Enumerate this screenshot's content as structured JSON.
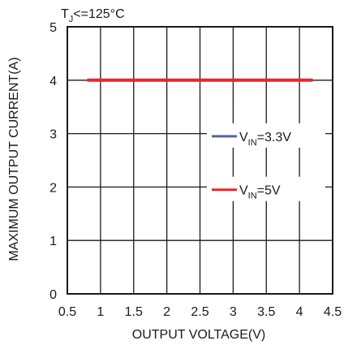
{
  "chart_data": {
    "type": "line",
    "xlabel": "OUTPUT VOLTAGE(V)",
    "ylabel": "MAXIMUM OUTPUT CURRENT(A)",
    "xlim": [
      0.5,
      4.5
    ],
    "ylim": [
      0,
      5
    ],
    "xticks": [
      "0.5",
      "1",
      "1.5",
      "2",
      "2.5",
      "3",
      "3.5",
      "4",
      "4.5"
    ],
    "yticks": [
      "0",
      "1",
      "2",
      "3",
      "4",
      "5"
    ],
    "grid": true,
    "annotation": {
      "main": "T",
      "sub": "J",
      "rest": "<=125°C"
    },
    "legend_placement": "inside-right",
    "series": [
      {
        "label_main": "V",
        "label_sub": "IN",
        "label_rest": "=3.3V",
        "color": "#5b5fa8",
        "x": [
          0.8,
          4.2
        ],
        "y": [
          4,
          4
        ]
      },
      {
        "label_main": "V",
        "label_sub": "IN",
        "label_rest": "=5V",
        "color": "#e8262a",
        "x": [
          0.8,
          4.2
        ],
        "y": [
          4,
          4
        ]
      }
    ]
  }
}
